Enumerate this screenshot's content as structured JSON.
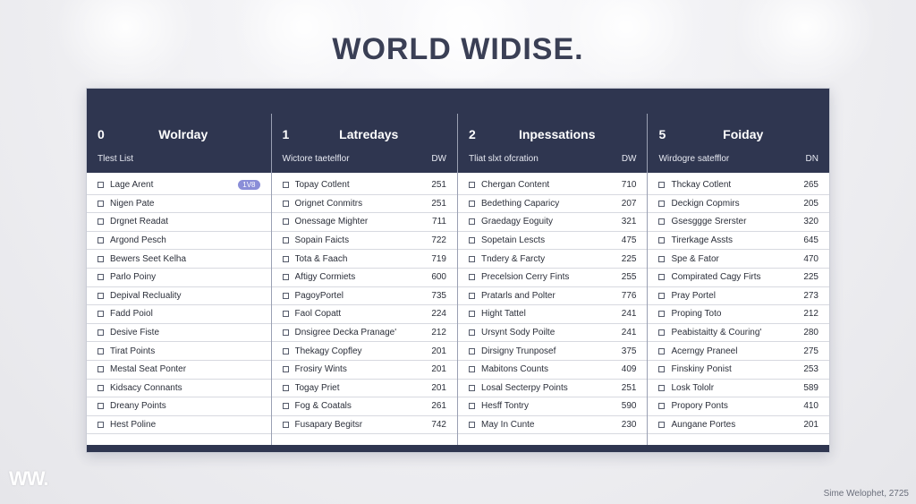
{
  "title": "WORLD WIDISE.",
  "columns": [
    {
      "num": "0",
      "name": "Wolrday",
      "sub_left": "Tlest List",
      "sub_right": "",
      "rows": [
        {
          "label": "Lage Arent",
          "value": "",
          "badge": "1V8"
        },
        {
          "label": "Nigen Pate",
          "value": ""
        },
        {
          "label": "Drgnet Readat",
          "value": ""
        },
        {
          "label": "Argond Pesch",
          "value": ""
        },
        {
          "label": "Bewers Seet Kelha",
          "value": ""
        },
        {
          "label": "Parlo Poiny",
          "value": ""
        },
        {
          "label": "Depival Recluality",
          "value": ""
        },
        {
          "label": "Fadd Poiol",
          "value": ""
        },
        {
          "label": "Desive Fiste",
          "value": ""
        },
        {
          "label": "Tirat Points",
          "value": ""
        },
        {
          "label": "Mestal Seat Ponter",
          "value": ""
        },
        {
          "label": "Kidsacy Connants",
          "value": ""
        },
        {
          "label": "Dreany Points",
          "value": ""
        },
        {
          "label": "Hest Poline",
          "value": ""
        }
      ]
    },
    {
      "num": "1",
      "name": "Latredays",
      "sub_left": "Wictore taetelflor",
      "sub_right": "DW",
      "rows": [
        {
          "label": "Topay Cotlent",
          "value": "251"
        },
        {
          "label": "Orignet Conmitrs",
          "value": "251"
        },
        {
          "label": "Onessage Mighter",
          "value": "711"
        },
        {
          "label": "Sopain Faicts",
          "value": "722"
        },
        {
          "label": "Tota & Faach",
          "value": "719"
        },
        {
          "label": "Aftigy Cormiets",
          "value": "600"
        },
        {
          "label": "PagoyPortel",
          "value": "735"
        },
        {
          "label": "Faol Copatt",
          "value": "224"
        },
        {
          "label": "Dnsigree Decka Pranage'",
          "value": "212"
        },
        {
          "label": "Thekagy Copfley",
          "value": "201"
        },
        {
          "label": "Frosiry Wints",
          "value": "201"
        },
        {
          "label": "Togay Priet",
          "value": "201"
        },
        {
          "label": "Fog & Coatals",
          "value": "261"
        },
        {
          "label": "Fusapary Begitsr",
          "value": "742"
        }
      ]
    },
    {
      "num": "2",
      "name": "Inpessations",
      "sub_left": "Tliat slxt ofcration",
      "sub_right": "DW",
      "rows": [
        {
          "label": "Chergan Content",
          "value": "710"
        },
        {
          "label": "Bedething Caparicy",
          "value": "207"
        },
        {
          "label": "Graedagy Eoguity",
          "value": "321"
        },
        {
          "label": "Sopetain Lescts",
          "value": "475"
        },
        {
          "label": "Tndery & Farcty",
          "value": "225"
        },
        {
          "label": "Precelsion Cerry Fints",
          "value": "255"
        },
        {
          "label": "Pratarls and Polter",
          "value": "776"
        },
        {
          "label": "Hight Tattel",
          "value": "241"
        },
        {
          "label": "Ursynt Sody Poilte",
          "value": "241"
        },
        {
          "label": "Dirsigny Trunposef",
          "value": "375"
        },
        {
          "label": "Mabitons Counts",
          "value": "409"
        },
        {
          "label": "Losal Secterpy Points",
          "value": "251"
        },
        {
          "label": "Hesff Tontry",
          "value": "590"
        },
        {
          "label": "May In Cunte",
          "value": "230"
        }
      ]
    },
    {
      "num": "5",
      "name": "Foiday",
      "sub_left": "Wirdogre satefflor",
      "sub_right": "DN",
      "rows": [
        {
          "label": "Thckay Cotlent",
          "value": "265"
        },
        {
          "label": "Deckign Copmirs",
          "value": "205"
        },
        {
          "label": "Gsesggge Srerster",
          "value": "320"
        },
        {
          "label": "Tirerkage Assts",
          "value": "645"
        },
        {
          "label": "Spe & Fator",
          "value": "470"
        },
        {
          "label": "Compirated Cagy Firts",
          "value": "225"
        },
        {
          "label": "Pray Portel",
          "value": "273"
        },
        {
          "label": "Proping Toto",
          "value": "212"
        },
        {
          "label": "Peabistaitty & Couring'",
          "value": "280"
        },
        {
          "label": "Acerngy Praneel",
          "value": "275"
        },
        {
          "label": "Finskiny Ponist",
          "value": "253"
        },
        {
          "label": "Losk Tololr",
          "value": "589"
        },
        {
          "label": "Propory Ponts",
          "value": "410"
        },
        {
          "label": "Aungane Portes",
          "value": "201"
        }
      ]
    }
  ],
  "logo": "WW.",
  "credit": "Sime Welophet, 2725",
  "colors": {
    "header": "#2f3650",
    "badge": "#8a8ed8",
    "title": "#3a3f55"
  }
}
